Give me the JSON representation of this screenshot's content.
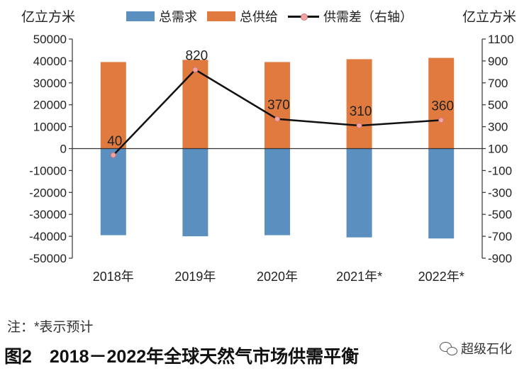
{
  "unit_left": "亿立方米",
  "unit_right": "亿立方米",
  "legend": {
    "demand": "总需求",
    "supply": "总供给",
    "gap": "供需差（右轴）"
  },
  "footnote": "注：*表示预计",
  "caption": "图2　2018－2022年全球天然气市场供需平衡",
  "watermark": "超级石化",
  "colors": {
    "demand": "#5b8fc0",
    "supply": "#e07a3f",
    "line": "#111111",
    "marker": "#f4a3a3"
  },
  "icons": [
    "wechat-icon"
  ],
  "chart_data": {
    "type": "bar",
    "categories": [
      "2018年",
      "2019年",
      "2020年",
      "2021年*",
      "2022年*"
    ],
    "series": [
      {
        "name": "总需求",
        "type": "bar",
        "axis": "left",
        "values": [
          -39500,
          -40000,
          -39500,
          -40500,
          -41000
        ]
      },
      {
        "name": "总供给",
        "type": "bar",
        "axis": "left",
        "values": [
          39500,
          40500,
          39500,
          40800,
          41400
        ]
      },
      {
        "name": "供需差（右轴）",
        "type": "line",
        "axis": "right",
        "values": [
          40,
          820,
          370,
          310,
          360
        ],
        "labels": [
          "40",
          "820",
          "370",
          "310",
          "360"
        ]
      }
    ],
    "y_left": {
      "min": -50000,
      "max": 50000,
      "step": 10000,
      "ticks": [
        "50000",
        "40000",
        "30000",
        "20000",
        "10000",
        "0",
        "-10000",
        "-20000",
        "-30000",
        "-40000",
        "-50000"
      ]
    },
    "y_right": {
      "min": -900,
      "max": 1100,
      "step": 200,
      "ticks": [
        "1100",
        "900",
        "700",
        "500",
        "300",
        "100",
        "-100",
        "-300",
        "-500",
        "-700",
        "-900"
      ]
    },
    "grid": false,
    "legend_position": "top"
  }
}
